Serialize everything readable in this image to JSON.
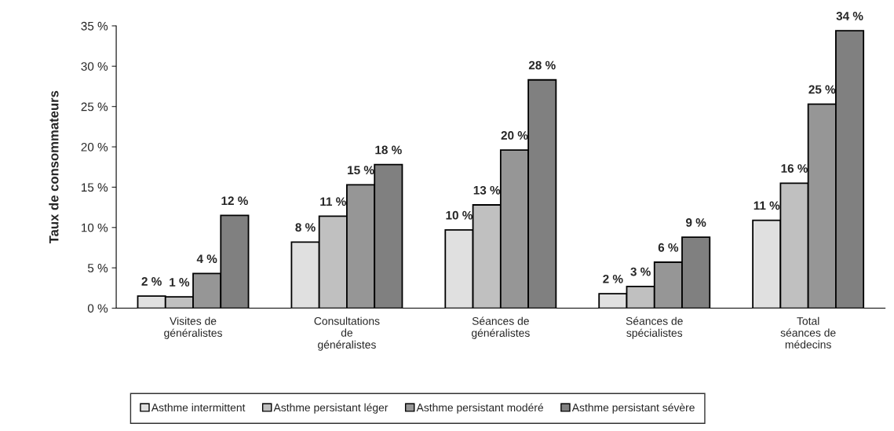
{
  "chart_data": {
    "type": "bar",
    "ylabel": "Taux de consommateurs",
    "categories": [
      "Visites de\ngénéralistes",
      "Consultations\nde\ngénéralistes",
      "Séances de\ngénéralistes",
      "Séances de\nspécialistes",
      "Total\nséances de\nmédecins"
    ],
    "series": [
      {
        "name": "Asthme intermittent",
        "color": "#e0e0e0",
        "values": [
          1.5,
          8.2,
          9.7,
          1.8,
          10.9
        ],
        "value_labels": [
          "2 %",
          "8 %",
          "10 %",
          "2 %",
          "11 %"
        ]
      },
      {
        "name": "Asthme persistant léger",
        "color": "#c0c0c0",
        "values": [
          1.4,
          11.4,
          12.8,
          2.7,
          15.5
        ],
        "value_labels": [
          "1 %",
          "11 %",
          "13 %",
          "3 %",
          "16 %"
        ]
      },
      {
        "name": "Asthme persistant modéré",
        "color": "#969696",
        "values": [
          4.3,
          15.3,
          19.6,
          5.7,
          25.3
        ],
        "value_labels": [
          "4 %",
          "15 %",
          "20 %",
          "6 %",
          "25 %"
        ]
      },
      {
        "name": "Asthme persistant sévère",
        "color": "#808080",
        "values": [
          11.5,
          17.8,
          28.3,
          8.8,
          34.4
        ],
        "value_labels": [
          "12 %",
          "18 %",
          "28 %",
          "9 %",
          "34 %"
        ]
      }
    ],
    "ylim": [
      0,
      35
    ],
    "yticks": [
      {
        "value": 0,
        "label": "0 %"
      },
      {
        "value": 5,
        "label": "5 %"
      },
      {
        "value": 10,
        "label": "10 %"
      },
      {
        "value": 15,
        "label": "15 %"
      },
      {
        "value": 20,
        "label": "20 %"
      },
      {
        "value": 25,
        "label": "25 %"
      },
      {
        "value": 30,
        "label": "30 %"
      },
      {
        "value": 35,
        "label": "35 %"
      }
    ],
    "grid": false,
    "legend": "bottom"
  }
}
